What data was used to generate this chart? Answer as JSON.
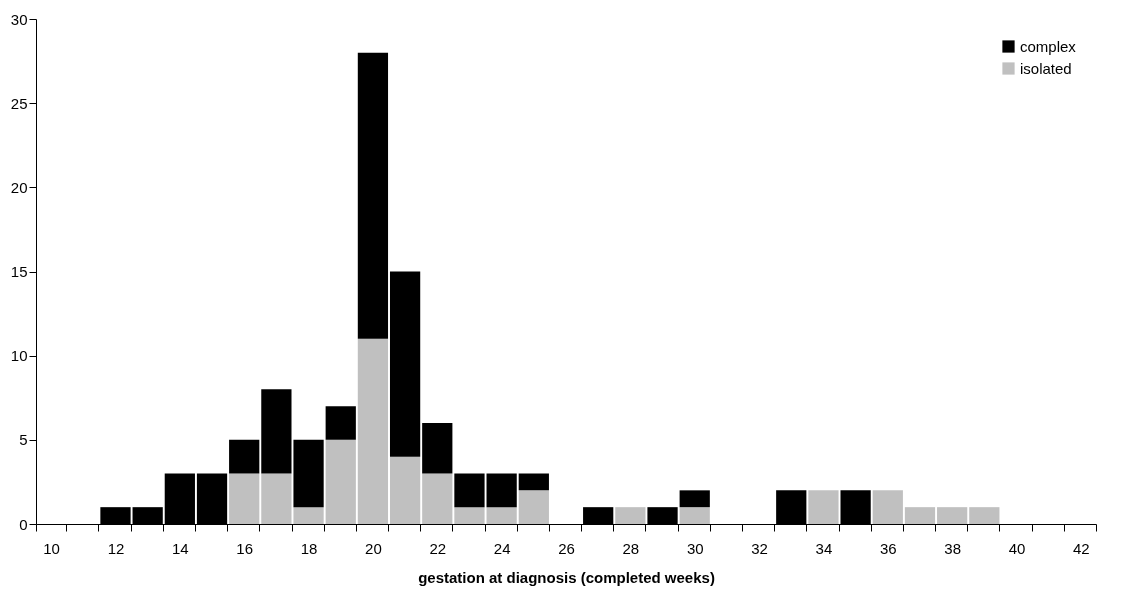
{
  "chart_data": {
    "type": "bar",
    "xlabel": "gestation at diagnosis (completed weeks)",
    "categories": [
      "10",
      null,
      "12",
      null,
      "14",
      null,
      "16",
      null,
      "18",
      null,
      "20",
      null,
      "22",
      null,
      "24",
      null,
      "26",
      null,
      "28",
      null,
      "30",
      null,
      "32",
      null,
      "34",
      null,
      "36",
      null,
      "38",
      null,
      "40",
      null,
      "42"
    ],
    "stacked": true,
    "ylim": [
      0,
      30
    ],
    "yticks": [
      0,
      5,
      10,
      15,
      20,
      25,
      30
    ],
    "grid": false,
    "legend": "top right",
    "series": [
      {
        "name": "isolated",
        "color": "#c0c0c0",
        "values": [
          0,
          0,
          0,
          0,
          0,
          0,
          3,
          3,
          1,
          5,
          11,
          4,
          3,
          1,
          1,
          2,
          0,
          0,
          1,
          0,
          1,
          0,
          0,
          0,
          2,
          0,
          2,
          1,
          1,
          1,
          0,
          0,
          0
        ]
      },
      {
        "name": "complex",
        "color": "#000000",
        "values": [
          0,
          0,
          1,
          1,
          3,
          3,
          2,
          5,
          4,
          2,
          17,
          11,
          3,
          2,
          2,
          1,
          0,
          1,
          0,
          1,
          1,
          0,
          0,
          2,
          0,
          2,
          0,
          0,
          0,
          0,
          0,
          0,
          0
        ]
      }
    ]
  }
}
